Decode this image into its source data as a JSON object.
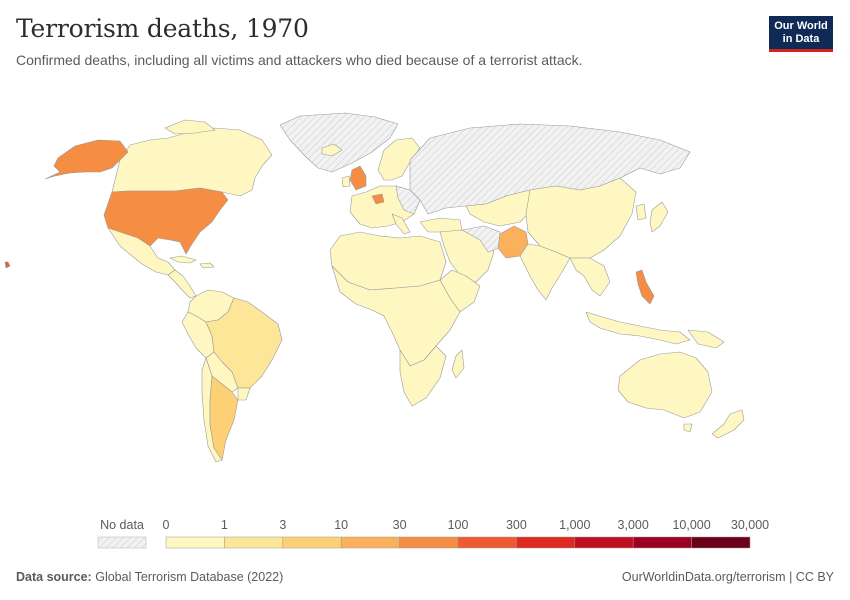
{
  "header": {
    "title": "Terrorism deaths, 1970",
    "subtitle": "Confirmed deaths, including all victims and attackers who died because of a terrorist attack."
  },
  "logo": {
    "line1": "Our World",
    "line2": "in Data"
  },
  "legend": {
    "no_data_label": "No data",
    "ticks": [
      "0",
      "1",
      "3",
      "10",
      "30",
      "100",
      "300",
      "1,000",
      "3,000",
      "10,000",
      "30,000"
    ],
    "colors": [
      "#fff7c2",
      "#fee699",
      "#fdd076",
      "#fbb05c",
      "#f58d42",
      "#f05a33",
      "#de2a20",
      "#c0101f",
      "#9c0022",
      "#6b0019"
    ]
  },
  "footer": {
    "source_label": "Data source:",
    "source_text": "Global Terrorism Database (2022)",
    "credit": "OurWorldinData.org/terrorism | CC BY"
  },
  "map_data": {
    "year": 1970,
    "countries": [
      {
        "name": "United States",
        "bin": 4
      },
      {
        "name": "Alaska (United States)",
        "bin": 4
      },
      {
        "name": "United Kingdom",
        "bin": 4
      },
      {
        "name": "Philippines",
        "bin": 4
      },
      {
        "name": "Pakistan",
        "bin": 3
      },
      {
        "name": "Argentina",
        "bin": 2
      },
      {
        "name": "Brazil",
        "bin": 1
      },
      {
        "name": "Russia",
        "bin": "no-data"
      },
      {
        "name": "Greenland",
        "bin": "no-data"
      }
    ]
  }
}
